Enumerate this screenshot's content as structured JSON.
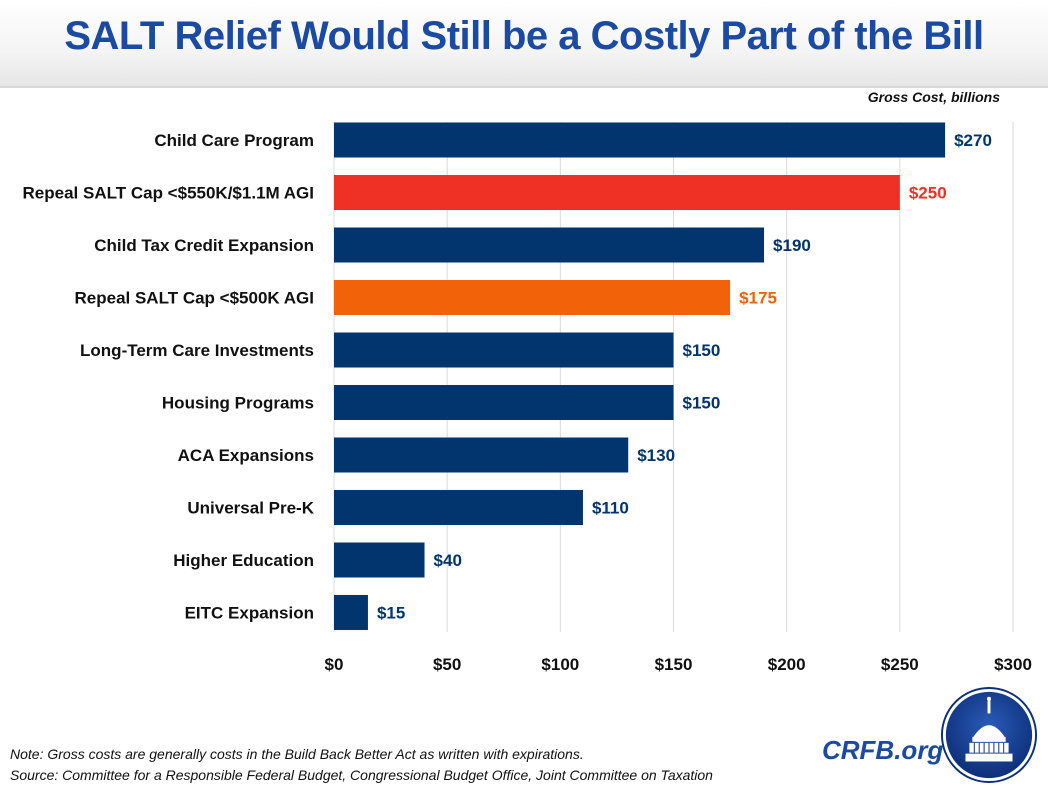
{
  "header": {
    "title": "SALT Relief Would Still be a Costly Part of the Bill"
  },
  "units_label": "Gross Cost, billions",
  "chart_data": {
    "type": "bar",
    "orientation": "horizontal",
    "title": "SALT Relief Would Still be a Costly Part of the Bill",
    "xlabel": "Gross Cost, billions",
    "ylabel": "",
    "xlim": [
      0,
      300
    ],
    "grid": true,
    "x_ticks": [
      0,
      50,
      100,
      150,
      200,
      250,
      300
    ],
    "x_tick_labels": [
      "$0",
      "$50",
      "$100",
      "$150",
      "$200",
      "$250",
      "$300"
    ],
    "categories": [
      "Child Care Program",
      "Repeal SALT Cap <$550K/$1.1M AGI",
      "Child Tax Credit Expansion",
      "Repeal SALT Cap <$500K AGI",
      "Long-Term Care Investments",
      "Housing Programs",
      "ACA Expansions",
      "Universal Pre-K",
      "Higher Education",
      "EITC Expansion"
    ],
    "values": [
      270,
      250,
      190,
      175,
      150,
      150,
      130,
      110,
      40,
      15
    ],
    "value_labels": [
      "$270",
      "$250",
      "$190",
      "$175",
      "$150",
      "$150",
      "$130",
      "$110",
      "$40",
      "$15"
    ],
    "colors": [
      "#02346e",
      "#ee3124",
      "#02346e",
      "#f26209",
      "#02346e",
      "#02346e",
      "#02346e",
      "#02346e",
      "#02346e",
      "#02346e"
    ]
  },
  "footer": {
    "note": "Note: Gross costs are generally costs in the Build Back Better Act as written with expirations.",
    "source": "Source: Committee for a Responsible Federal Budget, Congressional Budget Office, Joint Committee on Taxation",
    "brand": "CRFB.org",
    "logo_icon": "capitol-dome-icon"
  },
  "colors": {
    "title": "#1b4aa3",
    "primary_bar": "#02346e",
    "salt_high": "#ee3124",
    "salt_low": "#f26209",
    "gridline": "#d9d9d9"
  }
}
